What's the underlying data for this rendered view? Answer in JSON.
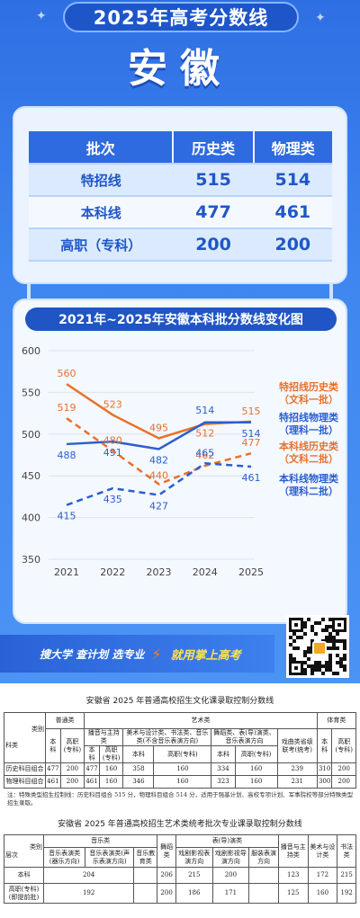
{
  "header": {
    "title": "2025年高考分数线",
    "province": "安徽"
  },
  "score_table": {
    "headers": [
      "批次",
      "历史类",
      "物理类"
    ],
    "rows": [
      {
        "name": "特招线",
        "history": "515",
        "physics": "514"
      },
      {
        "name": "本科线",
        "history": "477",
        "physics": "461"
      },
      {
        "name": "高职（专科）",
        "history": "200",
        "physics": "200"
      }
    ]
  },
  "chart_data": {
    "type": "line",
    "title": "2021年~2025年安徽本科批分数线变化图",
    "x": [
      "2021",
      "2022",
      "2023",
      "2024",
      "2025"
    ],
    "ylim": [
      350,
      600
    ],
    "yticks": [
      "600",
      "550",
      "500",
      "450",
      "400",
      "350"
    ],
    "series": [
      {
        "name": "特招线历史类（文科一批）",
        "values": [
          560,
          523,
          495,
          512,
          515
        ],
        "color": "#e8702a",
        "dash": false
      },
      {
        "name": "特招线物理类（理科一批）",
        "values": [
          488,
          491,
          482,
          514,
          514
        ],
        "color": "#2a5fcf",
        "dash": false
      },
      {
        "name": "本科线历史类（文科二批）",
        "values": [
          519,
          480,
          440,
          462,
          477
        ],
        "color": "#e8702a",
        "dash": true
      },
      {
        "name": "本科线物理类（理科二批）",
        "values": [
          415,
          435,
          427,
          465,
          461
        ],
        "color": "#2a5fcf",
        "dash": true
      }
    ],
    "legend": [
      {
        "line1": "特招线历史类",
        "line2": "（文科一批）",
        "color": "#e8702a"
      },
      {
        "line1": "特招线物理类",
        "line2": "（理科一批）",
        "color": "#2a5fcf"
      },
      {
        "line1": "本科线历史类",
        "line2": "（文科二批）",
        "color": "#e8702a"
      },
      {
        "line1": "本科线物理类",
        "line2": "（理科二批）",
        "color": "#2a5fcf"
      }
    ],
    "legend_position": "right"
  },
  "banner": {
    "text": "搜大学 查计划 选专业",
    "cta": "就用掌上高考"
  },
  "doc1": {
    "title": "安徽省 2025 年普通高校招生文化课录取控制分数线",
    "corner_top": "类别",
    "corner_bottom": "科类",
    "groups": [
      "普通类",
      "艺术类",
      "体育类"
    ],
    "art_sub": [
      "播音与主持类",
      "美术与设计类、书法类、音乐类(不含音乐表演方向)",
      "舞蹈类、表(导)演类、音乐表演方向",
      "戏曲类省级联考(统考)"
    ],
    "cols": [
      "本科",
      "高职(专科)",
      "本科",
      "高职(专科)",
      "本科",
      "高职(专科)",
      "本科",
      "高职(专科)",
      "",
      "本科",
      "高职(专科)"
    ],
    "rows": [
      {
        "name": "历史科目组合",
        "values": [
          "477",
          "200",
          "477",
          "160",
          "358",
          "160",
          "334",
          "160",
          "239",
          "310",
          "200"
        ]
      },
      {
        "name": "物理科目组合",
        "values": [
          "461",
          "200",
          "461",
          "160",
          "346",
          "160",
          "323",
          "160",
          "231",
          "300",
          "200"
        ]
      }
    ],
    "note": "注：特殊类型招生控制线：历史科目组合 515 分，物理科目组合 514 分，适用于强基计划、高校专项计划、军事院校等部分特殊类型招生录取。"
  },
  "doc2": {
    "title": "安徽省 2025 年普通高校招生艺术类统考批次专业课录取控制分数线",
    "corner_top": "类别",
    "corner_bottom": "层次",
    "groups": [
      "音乐类",
      "舞蹈类",
      "表(导)演类",
      "播音与主持类",
      "美术与设计类",
      "书法类"
    ],
    "music_sub": [
      "音乐表演类(器乐方向)",
      "音乐表演类(声乐表演方向)",
      "音乐教育类"
    ],
    "drama_sub": [
      "戏剧影视表演方向",
      "戏剧影视导演方向",
      "服装表演方向"
    ],
    "rows": [
      {
        "name": "本科",
        "values": [
          "204",
          "",
          "206",
          "215",
          "200",
          "123",
          "172",
          "215"
        ]
      },
      {
        "name": "高职(专科)(即提前批)",
        "values": [
          "192",
          "",
          "200",
          "186",
          "171",
          "125",
          "160",
          "192"
        ]
      }
    ]
  }
}
